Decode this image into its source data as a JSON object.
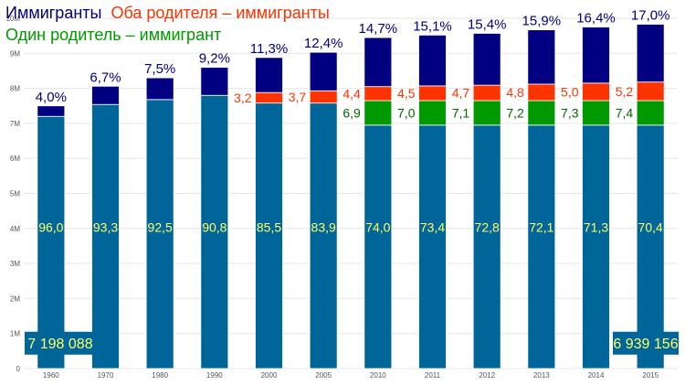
{
  "chart_data": {
    "type": "bar",
    "stacked": true,
    "categories": [
      "1960",
      "1970",
      "1980",
      "1990",
      "2000",
      "2005",
      "2010",
      "2011",
      "2012",
      "2013",
      "2014",
      "2015"
    ],
    "series": [
      {
        "name": "",
        "key": "native",
        "color": "#006699",
        "values": [
          7.2,
          7.54,
          7.68,
          7.8,
          7.58,
          7.58,
          6.95,
          6.95,
          6.95,
          6.95,
          6.95,
          6.95
        ],
        "labels": [
          "96,0",
          "93,3",
          "92,5",
          "90,8",
          "85,5",
          "83,9",
          "74,0",
          "73,4",
          "72,8",
          "72,1",
          "71,3",
          "70,4"
        ]
      },
      {
        "name": "Один родитель – иммигрант",
        "key": "one_parent",
        "color": "#009900",
        "values": [
          0,
          0,
          0,
          0,
          0,
          0,
          0.7,
          0.7,
          0.7,
          0.7,
          0.7,
          0.7
        ],
        "labels": [
          "",
          "",
          "",
          "",
          "",
          "",
          "6,9",
          "7,0",
          "7,1",
          "7,2",
          "7,3",
          "7,4"
        ]
      },
      {
        "name": "Оба родителя – иммигранты",
        "key": "both_parents",
        "color": "#ff3300",
        "values": [
          0,
          0,
          0,
          0,
          0.3,
          0.35,
          0.4,
          0.42,
          0.44,
          0.47,
          0.5,
          0.53
        ],
        "labels": [
          "",
          "",
          "",
          "",
          "3,2",
          "3,7",
          "4,4",
          "4,5",
          "4,7",
          "4,8",
          "5,0",
          "5,2"
        ]
      },
      {
        "name": "Иммигранты",
        "key": "immigrants",
        "color": "#000080",
        "values": [
          0.3,
          0.52,
          0.62,
          0.8,
          1.0,
          1.1,
          1.4,
          1.45,
          1.48,
          1.55,
          1.6,
          1.65
        ],
        "labels": [
          "4,0%",
          "6,7%",
          "7,5%",
          "9,2%",
          "11,3%",
          "12,4%",
          "14,7%",
          "15,1%",
          "15,4%",
          "15,9%",
          "16,4%",
          "17,0%"
        ]
      }
    ],
    "totals": {
      "first": "7 198 088",
      "last": "6 939 156"
    },
    "y_ticks": [
      "0",
      "1M",
      "2M",
      "3M",
      "4M",
      "5M",
      "6M",
      "7M",
      "8M",
      "9M",
      "10M"
    ],
    "ylim": [
      0,
      10
    ],
    "grid": true,
    "legend_position": "top-left",
    "title": "",
    "xlabel": "",
    "ylabel": ""
  },
  "legend": {
    "immigrants": "Иммигранты",
    "both_parents": "Оба родителя – иммигранты",
    "one_parent": "Один родитель – иммигрант",
    "colors": {
      "immigrants": "#000080",
      "both_parents": "#ff3300",
      "one_parent": "#009900"
    }
  }
}
